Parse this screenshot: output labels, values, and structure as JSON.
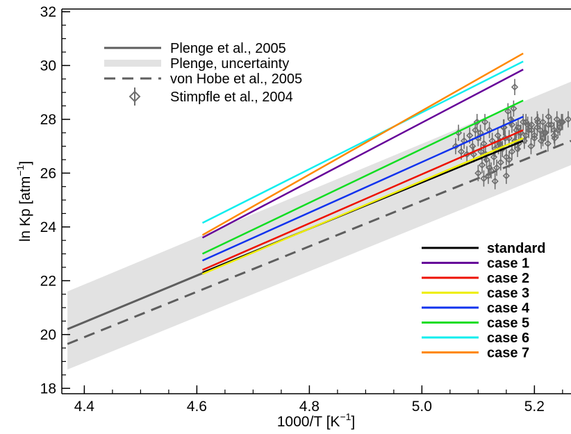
{
  "chart_data": {
    "type": "line",
    "xlabel": "1000/T [K",
    "xlabel_sup": "−1",
    "xlabel_close": "]",
    "ylabel": "ln Kp [atm",
    "ylabel_sup": "−1",
    "ylabel_close": "]",
    "xlim": [
      4.36,
      5.265
    ],
    "ylim": [
      17.8,
      32.1
    ],
    "x_ticks": [
      4.4,
      4.6,
      4.8,
      5.0,
      5.2
    ],
    "x_tick_labels": [
      "4.4",
      "4.6",
      "4.8",
      "5.0",
      "5.2"
    ],
    "y_ticks": [
      18,
      20,
      22,
      24,
      26,
      28,
      30,
      32
    ],
    "y_tick_labels": [
      "18",
      "20",
      "22",
      "24",
      "26",
      "28",
      "30",
      "32"
    ],
    "grid": false,
    "reference": {
      "plenge_uncertainty_band": {
        "name": "Plenge, uncertainty",
        "color": "#e2e2e2",
        "x": [
          4.37,
          5.265
        ],
        "upper": [
          21.6,
          29.4
        ],
        "lower": [
          18.7,
          26.3
        ]
      },
      "plenge_2005": {
        "name": "Plenge et al., 2005",
        "color": "#5e5e5e",
        "x": [
          4.37,
          4.61
        ],
        "y": [
          20.2,
          22.28
        ]
      },
      "von_hobe_2005": {
        "name": "von Hobe et al., 2005",
        "color": "#5e5e5e",
        "x": [
          4.37,
          5.265
        ],
        "y": [
          19.65,
          27.2
        ]
      }
    },
    "series": [
      {
        "name": "standard",
        "color": "#000000",
        "x": [
          4.61,
          5.18
        ],
        "y": [
          22.3,
          27.2
        ]
      },
      {
        "name": "case 1",
        "color": "#660099",
        "x": [
          4.61,
          5.18
        ],
        "y": [
          23.6,
          29.85
        ]
      },
      {
        "name": "case 2",
        "color": "#ee1100",
        "x": [
          4.61,
          5.18
        ],
        "y": [
          22.4,
          27.6
        ]
      },
      {
        "name": "case 3",
        "color": "#eeee00",
        "x": [
          4.61,
          5.18
        ],
        "y": [
          22.25,
          27.3
        ]
      },
      {
        "name": "case 4",
        "color": "#1133ee",
        "x": [
          4.61,
          5.18
        ],
        "y": [
          22.75,
          28.1
        ]
      },
      {
        "name": "case 5",
        "color": "#11dd22",
        "x": [
          4.61,
          5.18
        ],
        "y": [
          23.0,
          28.7
        ]
      },
      {
        "name": "case 6",
        "color": "#11eeee",
        "x": [
          4.61,
          5.18
        ],
        "y": [
          24.15,
          30.15
        ]
      },
      {
        "name": "case 7",
        "color": "#ff8800",
        "x": [
          4.61,
          5.18
        ],
        "y": [
          23.7,
          30.45
        ]
      }
    ],
    "observations": {
      "name": "Stimpfle et al., 2004",
      "color": "#6e6e6e",
      "error": 0.3,
      "x": [
        5.06,
        5.065,
        5.07,
        5.075,
        5.08,
        5.085,
        5.09,
        5.095,
        5.1,
        5.105,
        5.11,
        5.112,
        5.115,
        5.12,
        5.125,
        5.13,
        5.135,
        5.14,
        5.145,
        5.15,
        5.155,
        5.16,
        5.165,
        5.17,
        5.175,
        5.18,
        5.185,
        5.19,
        5.195,
        5.2,
        5.205,
        5.21,
        5.215,
        5.22,
        5.225,
        5.23,
        5.235,
        5.24,
        5.245,
        5.25,
        5.26,
        5.1,
        5.11,
        5.12,
        5.13,
        5.14,
        5.15,
        5.155,
        5.16,
        5.107,
        5.113,
        5.118,
        5.123,
        5.128,
        5.133,
        5.138,
        5.143,
        5.148,
        5.153,
        5.158,
        5.163,
        5.168,
        5.172,
        5.176,
        5.182,
        5.188,
        5.194,
        5.2,
        5.206,
        5.212,
        5.218,
        5.224,
        5.23,
        5.236,
        5.242,
        5.248,
        5.092,
        5.098,
        5.104,
        5.136,
        5.146,
        5.166,
        5.171,
        5.185,
        5.195,
        5.205,
        5.215,
        5.225,
        5.235,
        5.165
      ],
      "y": [
        27.0,
        27.5,
        26.8,
        27.2,
        26.7,
        27.4,
        27.0,
        27.6,
        27.3,
        26.8,
        27.1,
        27.9,
        26.5,
        27.6,
        27.2,
        26.9,
        27.4,
        27.0,
        27.7,
        26.6,
        27.3,
        27.8,
        27.2,
        26.9,
        27.5,
        27.9,
        27.4,
        27.6,
        27.8,
        27.3,
        27.7,
        27.6,
        27.9,
        27.5,
        28.1,
        27.8,
        27.6,
        28.0,
        27.7,
        27.9,
        28.0,
        26.0,
        25.8,
        26.2,
        25.7,
        26.4,
        25.9,
        26.5,
        26.8,
        26.3,
        26.7,
        25.9,
        26.1,
        26.6,
        26.2,
        27.1,
        26.9,
        27.3,
        28.3,
        28.0,
        28.4,
        27.6,
        27.1,
        27.5,
        27.2,
        27.8,
        27.0,
        27.4,
        27.9,
        27.2,
        27.5,
        27.1,
        27.8,
        27.3,
        27.6,
        27.9,
        26.7,
        27.9,
        27.5,
        27.0,
        27.7,
        27.2,
        27.7,
        27.9,
        27.6,
        28.0,
        27.3,
        27.8,
        27.4,
        29.2
      ]
    }
  }
}
